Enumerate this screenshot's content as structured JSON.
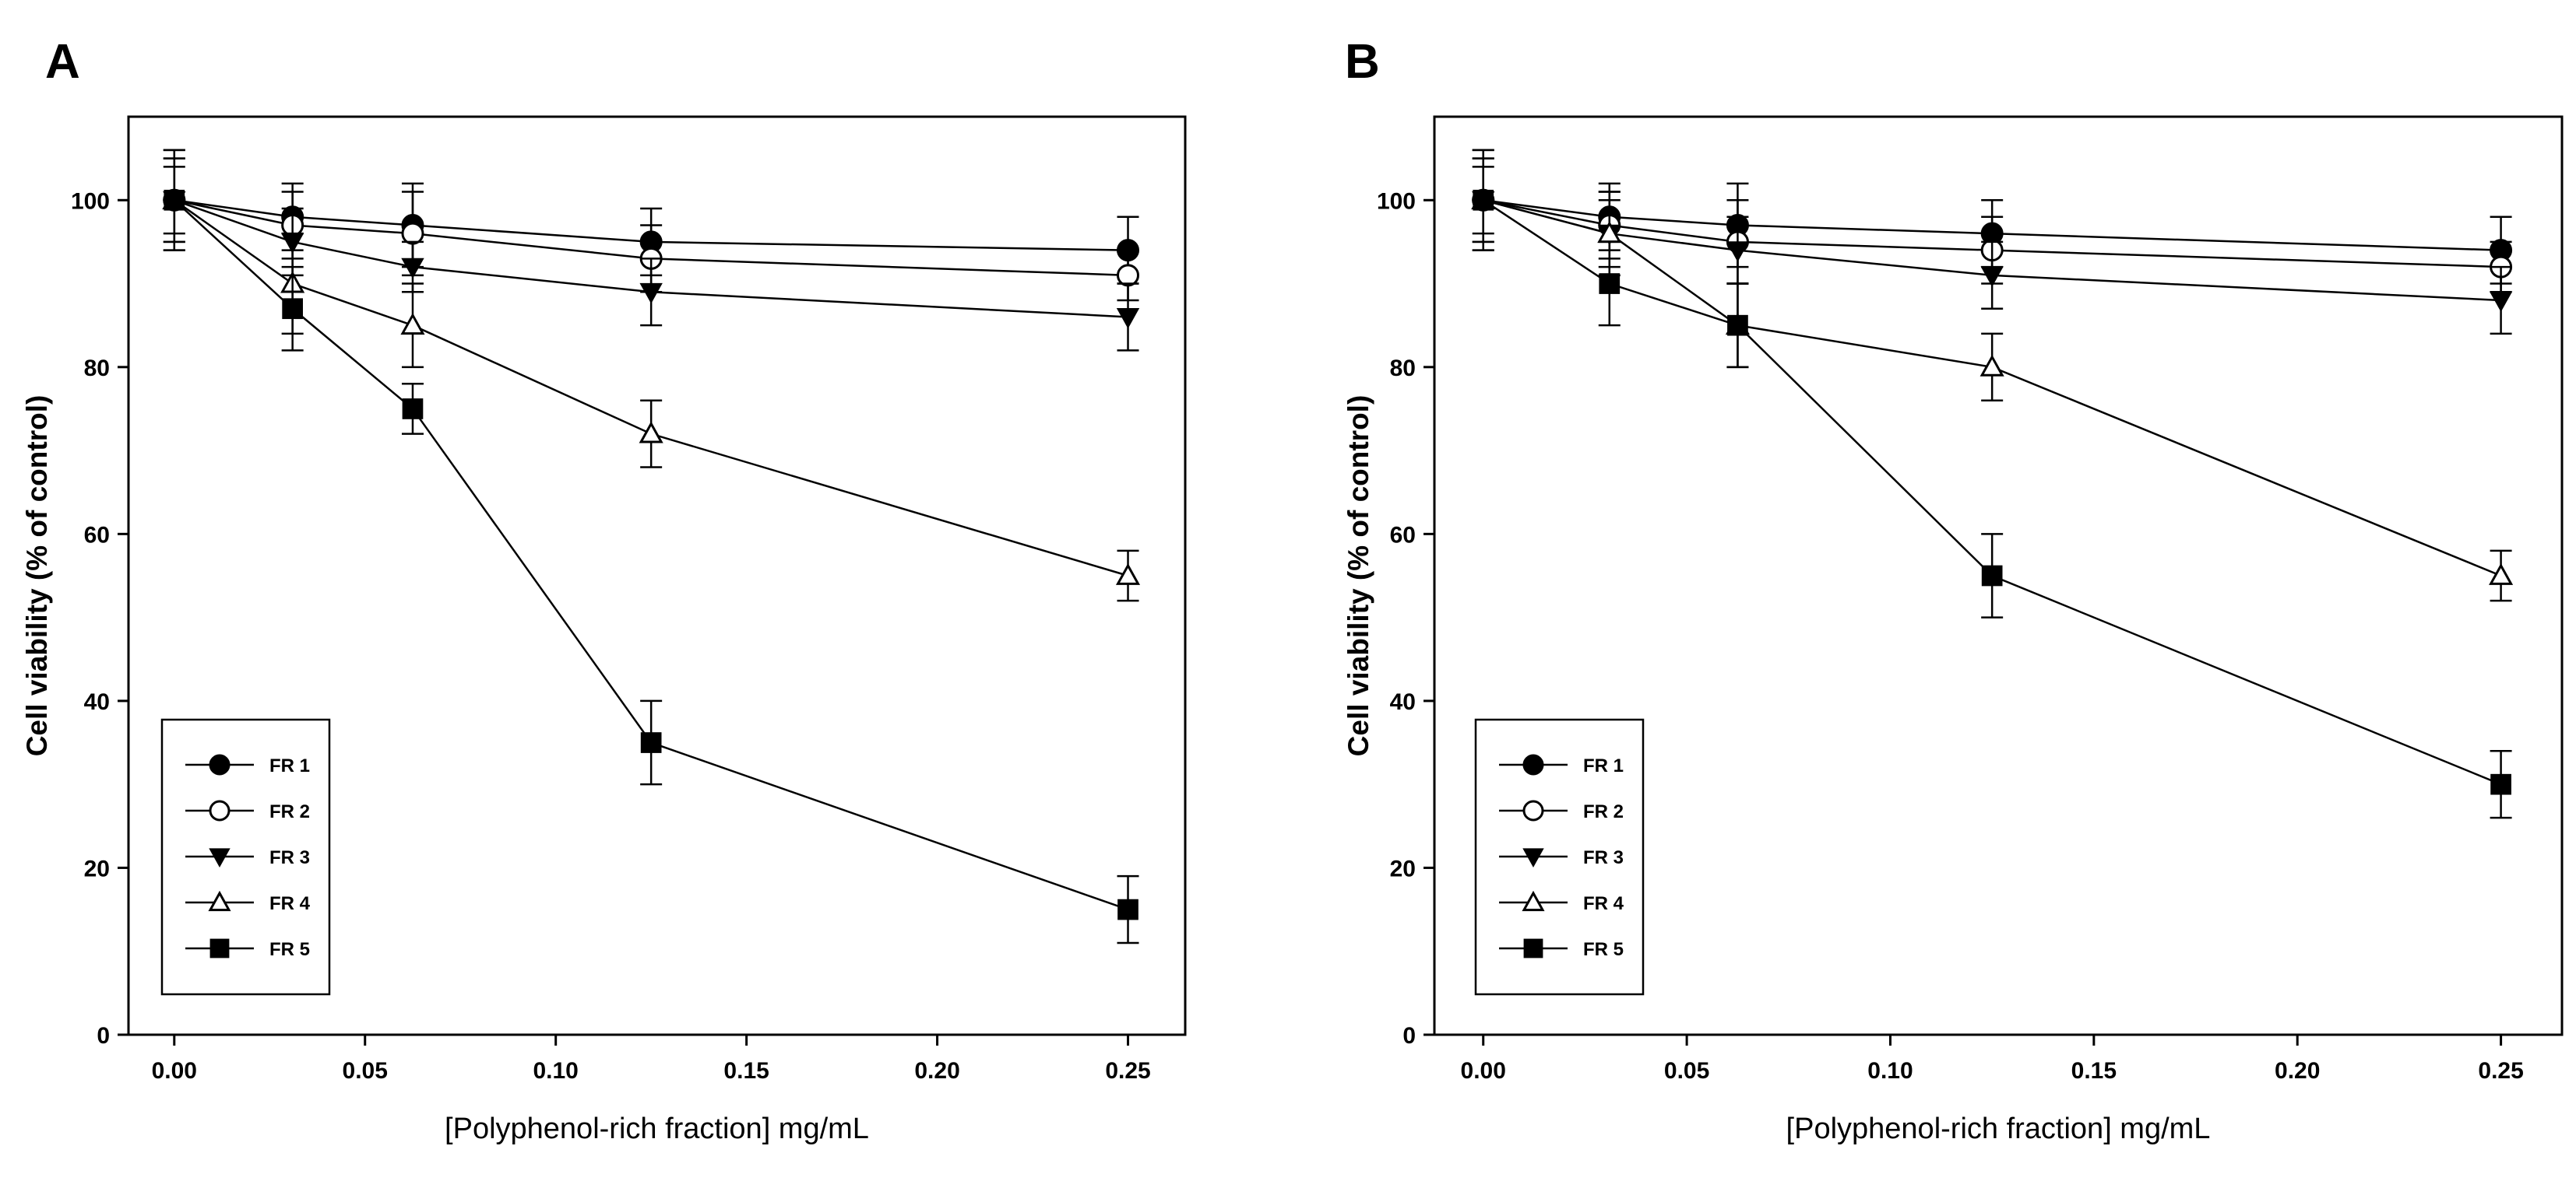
{
  "chart_data": [
    {
      "panel": "A",
      "type": "line",
      "xlabel": "[Polyphenol-rich fraction] mg/mL",
      "ylabel": "Cell viability (% of control)",
      "xlim": [
        -0.012,
        0.265
      ],
      "ylim": [
        0,
        110
      ],
      "xticks": [
        "0.00",
        "0.05",
        "0.10",
        "0.15",
        "0.20",
        "0.25"
      ],
      "yticks": [
        "0",
        "20",
        "40",
        "60",
        "80",
        "100"
      ],
      "x": [
        0,
        0.031,
        0.0625,
        0.125,
        0.25
      ],
      "legend_position": "lower-left",
      "series": [
        {
          "name": "FR 1",
          "marker": "circle-filled",
          "values": [
            100,
            98,
            97,
            95,
            94
          ],
          "errors": [
            5,
            4,
            5,
            4,
            4
          ]
        },
        {
          "name": "FR 2",
          "marker": "circle-open",
          "values": [
            100,
            97,
            96,
            93,
            91
          ],
          "errors": [
            6,
            4,
            5,
            4,
            3
          ]
        },
        {
          "name": "FR 3",
          "marker": "triangle-down-filled",
          "values": [
            100,
            95,
            92,
            89,
            86
          ],
          "errors": [
            4,
            4,
            3,
            4,
            4
          ]
        },
        {
          "name": "FR 4",
          "marker": "triangle-up-open",
          "values": [
            100,
            90,
            85,
            72,
            55
          ],
          "errors": [
            5,
            6,
            5,
            4,
            3
          ]
        },
        {
          "name": "FR 5",
          "marker": "square-filled",
          "values": [
            100,
            87,
            75,
            35,
            15
          ],
          "errors": [
            6,
            5,
            3,
            5,
            4
          ]
        }
      ]
    },
    {
      "panel": "B",
      "type": "line",
      "xlabel": "[Polyphenol-rich fraction] mg/mL",
      "ylabel": "Cell viability (% of control)",
      "xlim": [
        -0.012,
        0.265
      ],
      "ylim": [
        0,
        110
      ],
      "xticks": [
        "0.00",
        "0.05",
        "0.10",
        "0.15",
        "0.20",
        "0.25"
      ],
      "yticks": [
        "0",
        "20",
        "40",
        "60",
        "80",
        "100"
      ],
      "x": [
        0,
        0.031,
        0.0625,
        0.125,
        0.25
      ],
      "legend_position": "lower-left",
      "series": [
        {
          "name": "FR 1",
          "marker": "circle-filled",
          "values": [
            100,
            98,
            97,
            96,
            94
          ],
          "errors": [
            6,
            4,
            5,
            4,
            4
          ]
        },
        {
          "name": "FR 2",
          "marker": "circle-open",
          "values": [
            100,
            97,
            95,
            94,
            92
          ],
          "errors": [
            5,
            4,
            5,
            4,
            3
          ]
        },
        {
          "name": "FR 3",
          "marker": "triangle-down-filled",
          "values": [
            100,
            96,
            94,
            91,
            88
          ],
          "errors": [
            4,
            4,
            4,
            4,
            4
          ]
        },
        {
          "name": "FR 4",
          "marker": "triangle-up-open",
          "values": [
            100,
            96,
            85,
            80,
            55
          ],
          "errors": [
            5,
            5,
            5,
            4,
            3
          ]
        },
        {
          "name": "FR 5",
          "marker": "square-filled",
          "values": [
            100,
            90,
            85,
            55,
            30
          ],
          "errors": [
            6,
            5,
            5,
            5,
            4
          ]
        }
      ]
    }
  ]
}
